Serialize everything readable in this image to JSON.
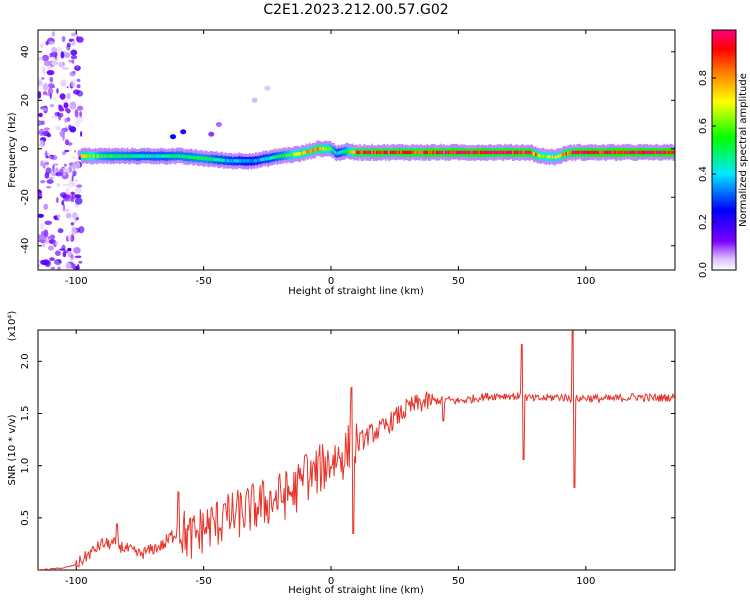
{
  "chart_data": [
    {
      "type": "heatmap",
      "title": "C2E1.2023.212.00.57.G02",
      "xlabel": "Height of straight line (km)",
      "ylabel": "Frequency (Hz)",
      "xlim": [
        -115,
        135
      ],
      "ylim": [
        -50,
        49
      ],
      "xticks": [
        -100,
        -50,
        0,
        50,
        100
      ],
      "yticks": [
        -40,
        -20,
        0,
        20,
        40
      ],
      "xtick_labels": [
        "-100",
        "-50",
        "0",
        "50",
        "100"
      ],
      "ytick_labels": [
        "-40",
        "-20",
        "0",
        "20",
        "40"
      ],
      "colorbar": {
        "label": "Normalized spectral amplitude",
        "range": [
          0,
          1
        ],
        "ticks": [
          0.0,
          0.2,
          0.4,
          0.6,
          0.8
        ],
        "tick_labels": [
          "0.0",
          "0.2",
          "0.4",
          "0.6",
          "0.8"
        ],
        "colormap": [
          "#ffffff",
          "#d8b8ff",
          "#7a00ff",
          "#0000ff",
          "#00e8ff",
          "#00ff00",
          "#ffff00",
          "#ff8000",
          "#ff0000",
          "#ff0080"
        ]
      },
      "ridge": {
        "x": [
          -98,
          -90,
          -80,
          -70,
          -60,
          -50,
          -40,
          -30,
          -20,
          -12,
          -5,
          0,
          2,
          5,
          10,
          20,
          40,
          60,
          78,
          82,
          88,
          92,
          95,
          100,
          110,
          120,
          135
        ],
        "y": [
          -3,
          -3,
          -3,
          -3,
          -3,
          -4,
          -5,
          -5,
          -3,
          -2,
          0,
          0,
          -2,
          -1,
          -1.5,
          -1.5,
          -1.5,
          -1.5,
          -1.5,
          -3,
          -3.5,
          -2,
          -1.5,
          -1.5,
          -1.5,
          -1.5,
          -1.5
        ],
        "amplitude": [
          0.8,
          0.55,
          0.5,
          0.45,
          0.5,
          0.55,
          0.4,
          0.35,
          0.5,
          0.75,
          0.8,
          0.6,
          0.4,
          0.5,
          0.9,
          0.9,
          0.95,
          1.0,
          0.95,
          0.7,
          0.65,
          0.85,
          0.95,
          0.95,
          1.0,
          1.0,
          1.0
        ]
      },
      "noise_band_x": [
        -115,
        -98
      ]
    },
    {
      "type": "line",
      "title": "",
      "xlabel": "Height of straight line (km)",
      "ylabel": "SNR (10 * v/v)",
      "y_multiplier": "(x10⁴)",
      "xlim": [
        -115,
        135
      ],
      "ylim": [
        0,
        2.3
      ],
      "xticks": [
        -100,
        -50,
        0,
        50,
        100
      ],
      "yticks": [
        0.5,
        1.0,
        1.5,
        2.0
      ],
      "xtick_labels": [
        "-100",
        "-50",
        "0",
        "50",
        "100"
      ],
      "ytick_labels": [
        "0.5",
        "1.0",
        "1.5",
        "2.0"
      ],
      "color": "#e8332a",
      "x": [
        -115,
        -105,
        -100,
        -95,
        -90,
        -85,
        -80,
        -75,
        -70,
        -65,
        -60,
        -55,
        -50,
        -45,
        -40,
        -35,
        -30,
        -25,
        -20,
        -15,
        -10,
        -5,
        0,
        5,
        8,
        10,
        15,
        20,
        25,
        30,
        35,
        40,
        45,
        50,
        55,
        60,
        65,
        70,
        75,
        80,
        85,
        90,
        95,
        100,
        105,
        110,
        115,
        120,
        125,
        130,
        135
      ],
      "values": [
        0.0,
        0.02,
        0.05,
        0.15,
        0.25,
        0.25,
        0.2,
        0.15,
        0.2,
        0.25,
        0.4,
        0.3,
        0.4,
        0.45,
        0.5,
        0.55,
        0.6,
        0.65,
        0.7,
        0.75,
        0.85,
        0.95,
        1.05,
        1.1,
        1.2,
        1.2,
        1.3,
        1.35,
        1.45,
        1.55,
        1.6,
        1.62,
        1.63,
        1.62,
        1.64,
        1.66,
        1.67,
        1.67,
        1.66,
        1.64,
        1.65,
        1.66,
        1.64,
        1.65,
        1.64,
        1.64,
        1.65,
        1.66,
        1.65,
        1.65,
        1.66
      ]
    }
  ]
}
